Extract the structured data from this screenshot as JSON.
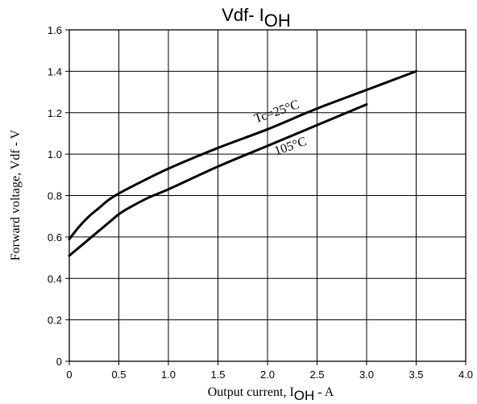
{
  "chart_data": {
    "type": "line",
    "title": "Vdf- I",
    "title_subscript": "OH",
    "xlabel": "Output current, I",
    "xlabel_subscript": "OH",
    "xlabel_suffix": " - A",
    "ylabel": "Forward voltage, Vdf - V",
    "xlim": [
      0,
      4.0
    ],
    "ylim": [
      0,
      1.6
    ],
    "grid": true,
    "legend": "none",
    "x_ticks": [
      "0",
      "0.5",
      "1.0",
      "1.5",
      "2.0",
      "2.5",
      "3.0",
      "3.5",
      "4.0"
    ],
    "y_ticks": [
      "0",
      "0.2",
      "0.4",
      "0.6",
      "0.8",
      "1.0",
      "1.2",
      "1.4",
      "1.6"
    ],
    "series": [
      {
        "name": "Tc=25°C",
        "x": [
          0,
          0.1,
          0.2,
          0.3,
          0.4,
          0.5,
          0.7,
          1.0,
          1.5,
          2.0,
          2.5,
          3.0,
          3.5
        ],
        "y": [
          0.59,
          0.65,
          0.7,
          0.74,
          0.78,
          0.81,
          0.86,
          0.93,
          1.03,
          1.12,
          1.22,
          1.31,
          1.4
        ]
      },
      {
        "name": "105°C",
        "x": [
          0,
          0.2,
          0.4,
          0.5,
          0.6,
          0.8,
          1.0,
          1.5,
          2.0,
          2.5,
          3.0
        ],
        "y": [
          0.51,
          0.59,
          0.67,
          0.71,
          0.74,
          0.79,
          0.83,
          0.94,
          1.04,
          1.14,
          1.24
        ]
      }
    ]
  }
}
